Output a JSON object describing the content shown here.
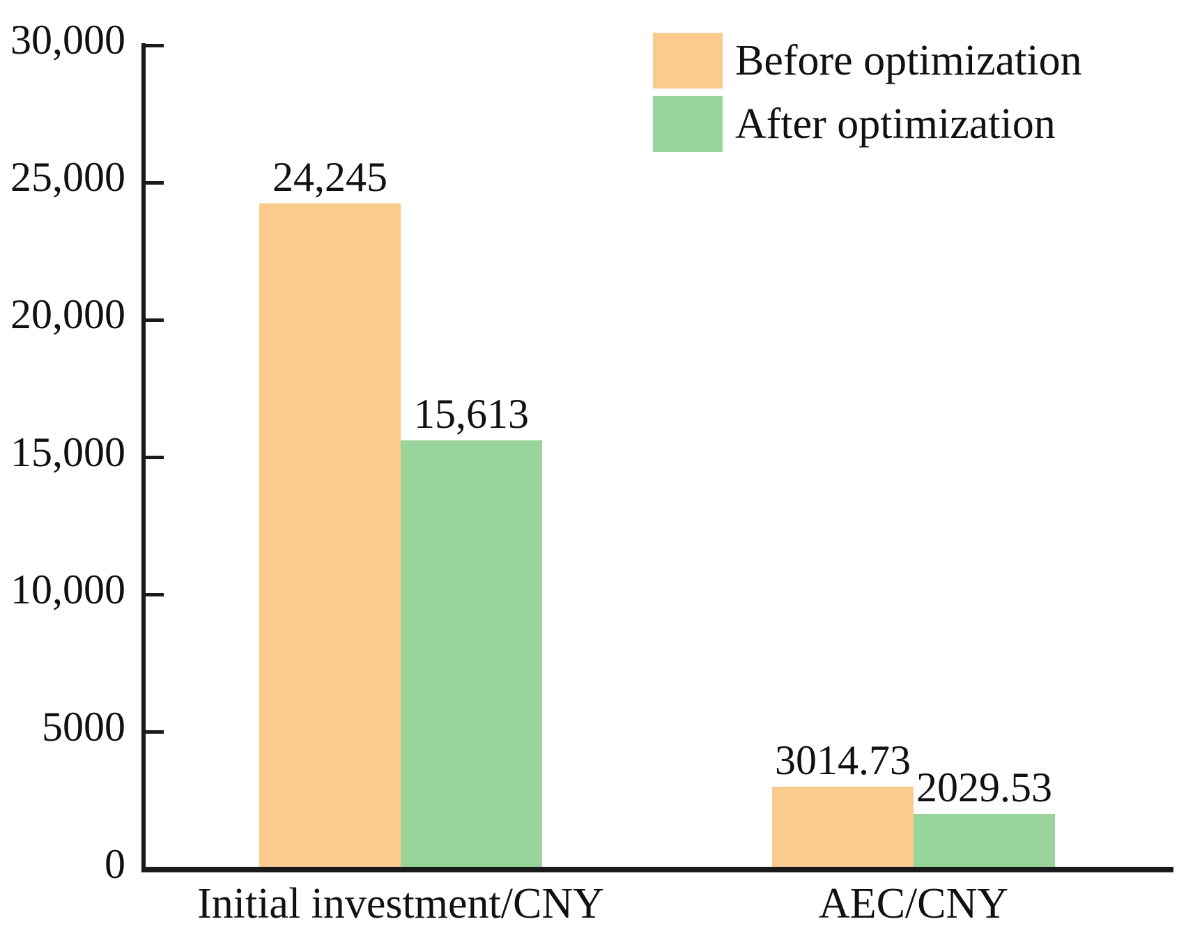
{
  "chart_data": {
    "type": "bar",
    "title": "",
    "xlabel": "",
    "ylabel": "",
    "categories": [
      "Initial investment/CNY",
      "AEC/CNY"
    ],
    "series": [
      {
        "name": "Before optimization",
        "color": "#fbca8d",
        "values": [
          24245,
          3014.73
        ],
        "value_labels": [
          "24,245",
          "3014.73"
        ]
      },
      {
        "name": "After optimization",
        "color": "#99d49a",
        "values": [
          15613,
          2029.53
        ],
        "value_labels": [
          "15,613",
          "2029.53"
        ]
      }
    ],
    "ylim": [
      0,
      30000
    ],
    "yticks": [
      {
        "value": 0,
        "label": "0"
      },
      {
        "value": 5000,
        "label": "5000"
      },
      {
        "value": 10000,
        "label": "10,000"
      },
      {
        "value": 15000,
        "label": "15,000"
      },
      {
        "value": 20000,
        "label": "20,000"
      },
      {
        "value": 25000,
        "label": "25,000"
      },
      {
        "value": 30000,
        "label": "30,000"
      }
    ],
    "grid": false,
    "legend_position": "top-right",
    "colors": {
      "axis": "#1a1a1a",
      "text": "#111111",
      "background": "#ffffff"
    }
  }
}
